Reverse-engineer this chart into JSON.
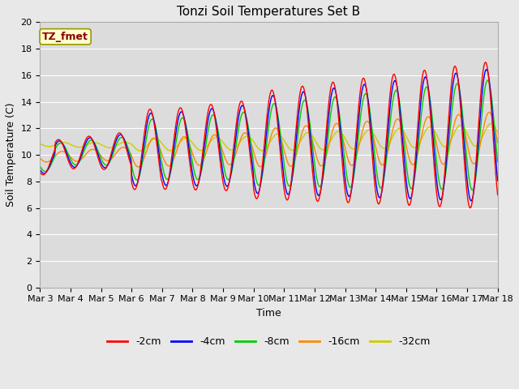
{
  "title": "Tonzi Soil Temperatures Set B",
  "xlabel": "Time",
  "ylabel": "Soil Temperature (C)",
  "legend_label": "TZ_fmet",
  "ylim": [
    0,
    20
  ],
  "series_colors": {
    "-2cm": "#ff0000",
    "-4cm": "#0000ff",
    "-8cm": "#00cc00",
    "-16cm": "#ff8800",
    "-32cm": "#cccc00"
  },
  "x_tick_labels": [
    "Mar 3",
    "Mar 4",
    "Mar 5",
    "Mar 6",
    "Mar 7",
    "Mar 8",
    "Mar 9",
    "Mar 10",
    "Mar 11",
    "Mar 12",
    "Mar 13",
    "Mar 14",
    "Mar 15",
    "Mar 16",
    "Mar 17",
    "Mar 18"
  ],
  "background_color": "#e8e8e8",
  "plot_bg_color": "#dcdcdc",
  "grid_color": "#ffffff",
  "title_fontsize": 11,
  "axis_fontsize": 9,
  "tick_fontsize": 8
}
